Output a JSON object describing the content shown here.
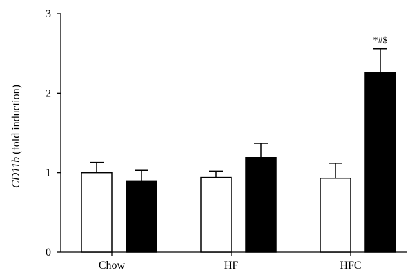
{
  "chart_data": {
    "type": "bar",
    "title": "",
    "xlabel": "",
    "ylabel": {
      "italic_part": "CD11b",
      "plain_part": " (fold induction)"
    },
    "categories": [
      "Chow",
      "HF",
      "HFC"
    ],
    "ylim": [
      0,
      3
    ],
    "yticks": [
      "0",
      "1",
      "2",
      "3"
    ],
    "grid": false,
    "legend": "none",
    "series": [
      {
        "fill": "#ffffff",
        "values": [
          1.0,
          0.94,
          0.93
        ],
        "errors": [
          0.13,
          0.08,
          0.19
        ]
      },
      {
        "fill": "#000000",
        "values": [
          0.89,
          1.19,
          2.26
        ],
        "errors": [
          0.14,
          0.18,
          0.3
        ]
      }
    ],
    "annotations": [
      {
        "category": "HFC",
        "series": 1,
        "text": "*#$"
      }
    ]
  }
}
